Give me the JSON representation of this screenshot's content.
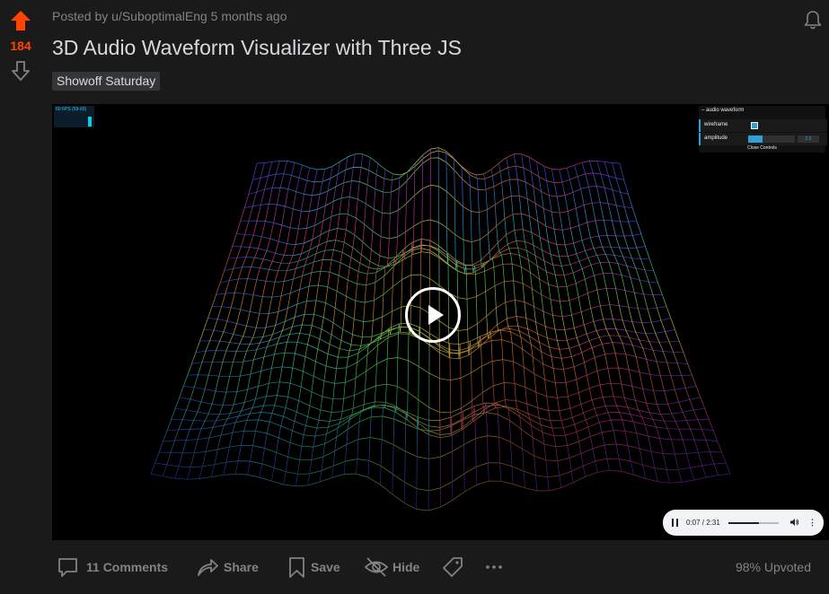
{
  "post": {
    "score": "184",
    "meta": "Posted by u/SuboptimalEng 5 months ago",
    "title": "3D Audio Waveform Visualizer with Three JS",
    "flair": "Showoff Saturday",
    "upvoted": "98% Upvoted"
  },
  "video": {
    "fps_label": "60 FPS (59-60)",
    "gui": {
      "title": "– audio waveform",
      "wireframe_label": "wireframe",
      "wireframe_checked": true,
      "amplitude_label": "amplitude",
      "amplitude_value": "2.5",
      "amplitude_level": 0.3,
      "close_label": "Close Controls"
    },
    "player": {
      "time": "0:07 / 2:31",
      "progress": 0.6
    }
  },
  "actions": {
    "comments": "11 Comments",
    "share": "Share",
    "save": "Save",
    "hide": "Hide"
  },
  "colors": {
    "accent": "#ff4500",
    "text_muted": "#818384",
    "background": "#1a1a1b"
  },
  "icons": [
    "upvote-arrow-icon",
    "downvote-arrow-icon",
    "bell-icon",
    "play-icon",
    "pause-icon",
    "volume-icon",
    "more-vertical-icon",
    "comment-icon",
    "share-icon",
    "bookmark-icon",
    "hide-eye-icon",
    "tag-icon",
    "more-horizontal-icon"
  ]
}
